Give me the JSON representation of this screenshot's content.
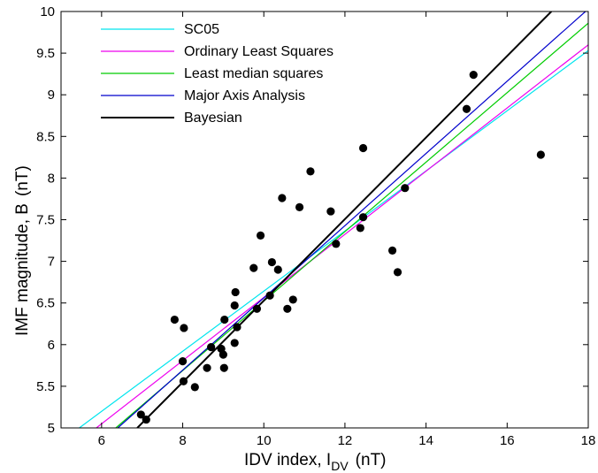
{
  "chart_data": {
    "type": "scatter",
    "xlabel_main": "IDV index, I",
    "xlabel_sub": "DV",
    "xlabel_unit": "(nT)",
    "ylabel_main": "IMF magnitude, B",
    "ylabel_unit": "(nT)",
    "xlim": [
      5,
      18
    ],
    "ylim": [
      5,
      10
    ],
    "xticks": [
      "6",
      "8",
      "10",
      "12",
      "14",
      "16",
      "18"
    ],
    "yticks": [
      "5",
      "5.5",
      "6",
      "6.5",
      "7",
      "7.5",
      "8",
      "8.5",
      "9",
      "9.5",
      "10"
    ],
    "grid": false,
    "legend_position": "top-left",
    "points": [
      {
        "x": 6.97,
        "y": 5.16
      },
      {
        "x": 7.1,
        "y": 5.1
      },
      {
        "x": 7.8,
        "y": 6.3
      },
      {
        "x": 8.0,
        "y": 5.8
      },
      {
        "x": 8.02,
        "y": 5.56
      },
      {
        "x": 8.03,
        "y": 6.2
      },
      {
        "x": 8.3,
        "y": 5.49
      },
      {
        "x": 8.6,
        "y": 5.72
      },
      {
        "x": 8.7,
        "y": 5.97
      },
      {
        "x": 8.95,
        "y": 5.95
      },
      {
        "x": 9.0,
        "y": 5.88
      },
      {
        "x": 9.02,
        "y": 5.72
      },
      {
        "x": 9.03,
        "y": 6.3
      },
      {
        "x": 9.28,
        "y": 6.02
      },
      {
        "x": 9.28,
        "y": 6.47
      },
      {
        "x": 9.3,
        "y": 6.63
      },
      {
        "x": 9.34,
        "y": 6.21
      },
      {
        "x": 9.75,
        "y": 6.92
      },
      {
        "x": 9.83,
        "y": 6.43
      },
      {
        "x": 9.92,
        "y": 7.31
      },
      {
        "x": 10.15,
        "y": 6.59
      },
      {
        "x": 10.2,
        "y": 6.99
      },
      {
        "x": 10.35,
        "y": 6.9
      },
      {
        "x": 10.45,
        "y": 7.76
      },
      {
        "x": 10.58,
        "y": 6.43
      },
      {
        "x": 10.72,
        "y": 6.54
      },
      {
        "x": 10.88,
        "y": 7.65
      },
      {
        "x": 11.15,
        "y": 8.08
      },
      {
        "x": 11.65,
        "y": 7.6
      },
      {
        "x": 11.78,
        "y": 7.21
      },
      {
        "x": 12.38,
        "y": 7.4
      },
      {
        "x": 12.45,
        "y": 8.36
      },
      {
        "x": 12.45,
        "y": 7.53
      },
      {
        "x": 13.17,
        "y": 7.13
      },
      {
        "x": 13.3,
        "y": 6.87
      },
      {
        "x": 13.48,
        "y": 7.88
      },
      {
        "x": 15.0,
        "y": 8.83
      },
      {
        "x": 15.17,
        "y": 9.24
      },
      {
        "x": 16.83,
        "y": 8.28
      }
    ],
    "series": [
      {
        "name": "SC05",
        "color": "#00e5ee",
        "x": [
          5.45,
          18
        ],
        "y": [
          5.0,
          9.53
        ]
      },
      {
        "name": "Ordinary Least Squares",
        "color": "#ee00ee",
        "x": [
          5.87,
          18
        ],
        "y": [
          5.0,
          9.6
        ]
      },
      {
        "name": "Least median squares",
        "color": "#00cc00",
        "x": [
          6.35,
          18
        ],
        "y": [
          5.0,
          9.86
        ]
      },
      {
        "name": "Major Axis Analysis",
        "color": "#0000cc",
        "x": [
          6.4,
          17.93
        ],
        "y": [
          5.0,
          10.0
        ]
      },
      {
        "name": "Bayesian",
        "color": "#000000",
        "x": [
          6.88,
          17.09
        ],
        "y": [
          5.0,
          10.0
        ]
      }
    ]
  }
}
